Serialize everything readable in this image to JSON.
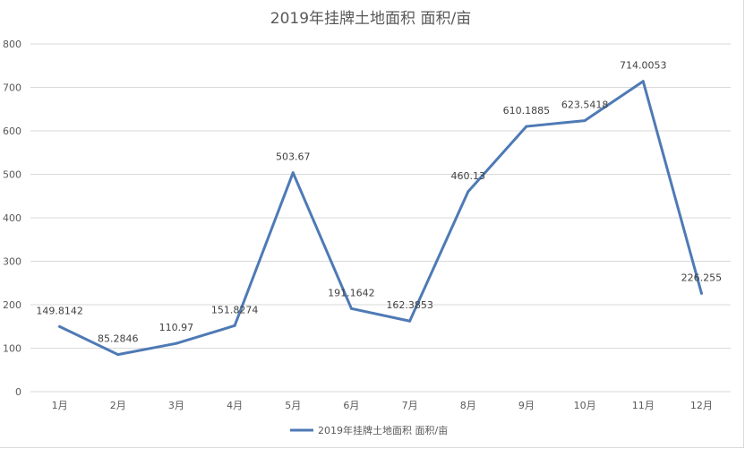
{
  "chart_data": {
    "type": "line",
    "title": "2019年挂牌土地面积 面积/亩",
    "categories": [
      "1月",
      "2月",
      "3月",
      "4月",
      "5月",
      "6月",
      "7月",
      "8月",
      "9月",
      "10月",
      "11月",
      "12月"
    ],
    "series": [
      {
        "name": "2019年挂牌土地面积 面积/亩",
        "values": [
          149.8142,
          85.2846,
          110.97,
          151.8274,
          503.67,
          191.1642,
          162.3853,
          460.13,
          610.1885,
          623.5418,
          714.0053,
          226.255
        ],
        "labels": [
          "149.8142",
          "85.2846",
          "110.97",
          "151.8274",
          "503.67",
          "191.1642",
          "162.3853",
          "460.13",
          "610.1885",
          "623.5418",
          "714.0053",
          "226.255"
        ],
        "color": "#4e7ab5"
      }
    ],
    "ylim": [
      0,
      800
    ],
    "yticks": [
      "0",
      "100",
      "200",
      "300",
      "400",
      "500",
      "600",
      "700",
      "800"
    ],
    "grid": true,
    "legend": "bottom"
  }
}
